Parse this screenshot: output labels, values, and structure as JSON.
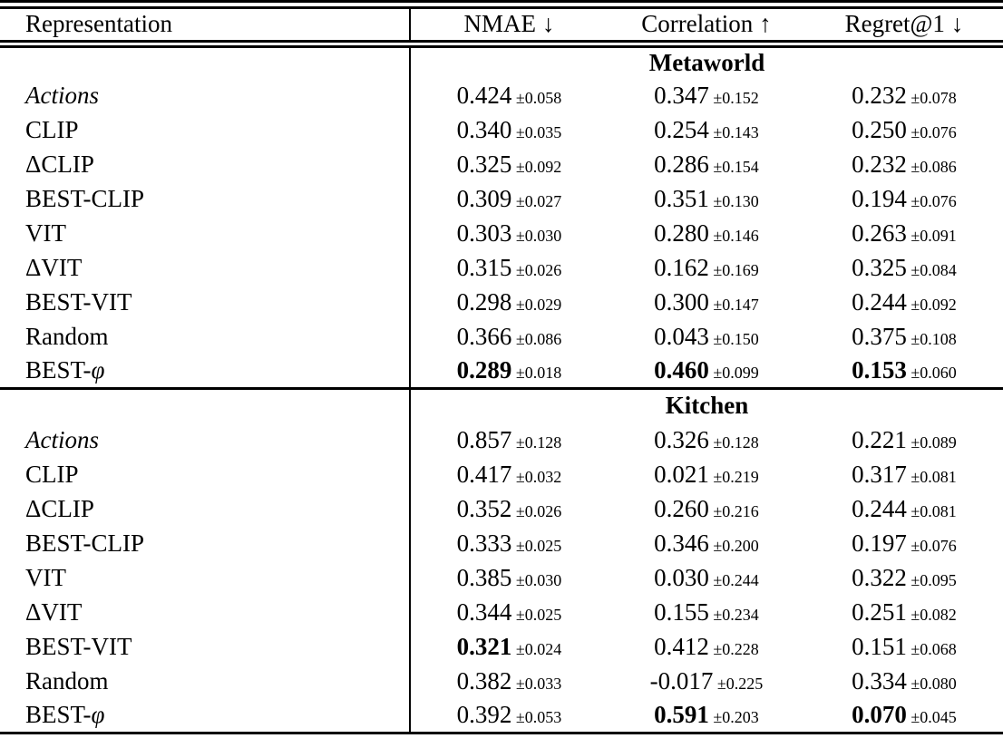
{
  "colors": {
    "text": "#000000",
    "background": "#ffffff",
    "rule": "#000000"
  },
  "table": {
    "columns": [
      {
        "label": "Representation",
        "arrow": ""
      },
      {
        "label": "NMAE",
        "arrow": "↓"
      },
      {
        "label": "Correlation",
        "arrow": "↑"
      },
      {
        "label": "Regret@1",
        "arrow": "↓"
      }
    ],
    "metric_keys": [
      "nmae",
      "correlation",
      "regret-at-1"
    ],
    "sections": [
      {
        "title": "Metaworld",
        "rows": [
          {
            "label": "Actions",
            "italic": true,
            "cells": [
              {
                "value": "0.424",
                "std": "±0.058",
                "bold": false
              },
              {
                "value": "0.347",
                "std": "±0.152",
                "bold": false
              },
              {
                "value": "0.232",
                "std": "±0.078",
                "bold": false
              }
            ]
          },
          {
            "label": "CLIP",
            "italic": false,
            "cells": [
              {
                "value": "0.340",
                "std": "±0.035",
                "bold": false
              },
              {
                "value": "0.254",
                "std": "±0.143",
                "bold": false
              },
              {
                "value": "0.250",
                "std": "±0.076",
                "bold": false
              }
            ]
          },
          {
            "label": "ΔCLIP",
            "italic": false,
            "cells": [
              {
                "value": "0.325",
                "std": "±0.092",
                "bold": false
              },
              {
                "value": "0.286",
                "std": "±0.154",
                "bold": false
              },
              {
                "value": "0.232",
                "std": "±0.086",
                "bold": false
              }
            ]
          },
          {
            "label": "BEST-CLIP",
            "italic": false,
            "cells": [
              {
                "value": "0.309",
                "std": "±0.027",
                "bold": false
              },
              {
                "value": "0.351",
                "std": "±0.130",
                "bold": false
              },
              {
                "value": "0.194",
                "std": "±0.076",
                "bold": false
              }
            ]
          },
          {
            "label": "VIT",
            "italic": false,
            "cells": [
              {
                "value": "0.303",
                "std": "±0.030",
                "bold": false
              },
              {
                "value": "0.280",
                "std": "±0.146",
                "bold": false
              },
              {
                "value": "0.263",
                "std": "±0.091",
                "bold": false
              }
            ]
          },
          {
            "label": "ΔVIT",
            "italic": false,
            "cells": [
              {
                "value": "0.315",
                "std": "±0.026",
                "bold": false
              },
              {
                "value": "0.162",
                "std": "±0.169",
                "bold": false
              },
              {
                "value": "0.325",
                "std": "±0.084",
                "bold": false
              }
            ]
          },
          {
            "label": "BEST-VIT",
            "italic": false,
            "cells": [
              {
                "value": "0.298",
                "std": "±0.029",
                "bold": false
              },
              {
                "value": "0.300",
                "std": "±0.147",
                "bold": false
              },
              {
                "value": "0.244",
                "std": "±0.092",
                "bold": false
              }
            ]
          },
          {
            "label": "Random",
            "italic": false,
            "cells": [
              {
                "value": "0.366",
                "std": "±0.086",
                "bold": false
              },
              {
                "value": "0.043",
                "std": "±0.150",
                "bold": false
              },
              {
                "value": "0.375",
                "std": "±0.108",
                "bold": false
              }
            ]
          },
          {
            "label": "BEST-φ",
            "italic": false,
            "cells": [
              {
                "value": "0.289",
                "std": "±0.018",
                "bold": true
              },
              {
                "value": "0.460",
                "std": "±0.099",
                "bold": true
              },
              {
                "value": "0.153",
                "std": "±0.060",
                "bold": true
              }
            ]
          }
        ]
      },
      {
        "title": "Kitchen",
        "rows": [
          {
            "label": "Actions",
            "italic": true,
            "cells": [
              {
                "value": "0.857",
                "std": "±0.128",
                "bold": false
              },
              {
                "value": "0.326",
                "std": "±0.128",
                "bold": false
              },
              {
                "value": "0.221",
                "std": "±0.089",
                "bold": false
              }
            ]
          },
          {
            "label": "CLIP",
            "italic": false,
            "cells": [
              {
                "value": "0.417",
                "std": "±0.032",
                "bold": false
              },
              {
                "value": "0.021",
                "std": "±0.219",
                "bold": false
              },
              {
                "value": "0.317",
                "std": "±0.081",
                "bold": false
              }
            ]
          },
          {
            "label": "ΔCLIP",
            "italic": false,
            "cells": [
              {
                "value": "0.352",
                "std": "±0.026",
                "bold": false
              },
              {
                "value": "0.260",
                "std": "±0.216",
                "bold": false
              },
              {
                "value": "0.244",
                "std": "±0.081",
                "bold": false
              }
            ]
          },
          {
            "label": "BEST-CLIP",
            "italic": false,
            "cells": [
              {
                "value": "0.333",
                "std": "±0.025",
                "bold": false
              },
              {
                "value": "0.346",
                "std": "±0.200",
                "bold": false
              },
              {
                "value": "0.197",
                "std": "±0.076",
                "bold": false
              }
            ]
          },
          {
            "label": "VIT",
            "italic": false,
            "cells": [
              {
                "value": "0.385",
                "std": "±0.030",
                "bold": false
              },
              {
                "value": "0.030",
                "std": "±0.244",
                "bold": false
              },
              {
                "value": "0.322",
                "std": "±0.095",
                "bold": false
              }
            ]
          },
          {
            "label": "ΔVIT",
            "italic": false,
            "cells": [
              {
                "value": "0.344",
                "std": "±0.025",
                "bold": false
              },
              {
                "value": "0.155",
                "std": "±0.234",
                "bold": false
              },
              {
                "value": "0.251",
                "std": "±0.082",
                "bold": false
              }
            ]
          },
          {
            "label": "BEST-VIT",
            "italic": false,
            "cells": [
              {
                "value": "0.321",
                "std": "±0.024",
                "bold": true
              },
              {
                "value": "0.412",
                "std": "±0.228",
                "bold": false
              },
              {
                "value": "0.151",
                "std": "±0.068",
                "bold": false
              }
            ]
          },
          {
            "label": "Random",
            "italic": false,
            "cells": [
              {
                "value": "0.382",
                "std": "±0.033",
                "bold": false
              },
              {
                "value": "-0.017",
                "std": "±0.225",
                "bold": false
              },
              {
                "value": "0.334",
                "std": "±0.080",
                "bold": false
              }
            ]
          },
          {
            "label": "BEST-φ",
            "italic": false,
            "cells": [
              {
                "value": "0.392",
                "std": "±0.053",
                "bold": false
              },
              {
                "value": "0.591",
                "std": "±0.203",
                "bold": true
              },
              {
                "value": "0.070",
                "std": "±0.045",
                "bold": true
              }
            ]
          }
        ]
      }
    ]
  }
}
